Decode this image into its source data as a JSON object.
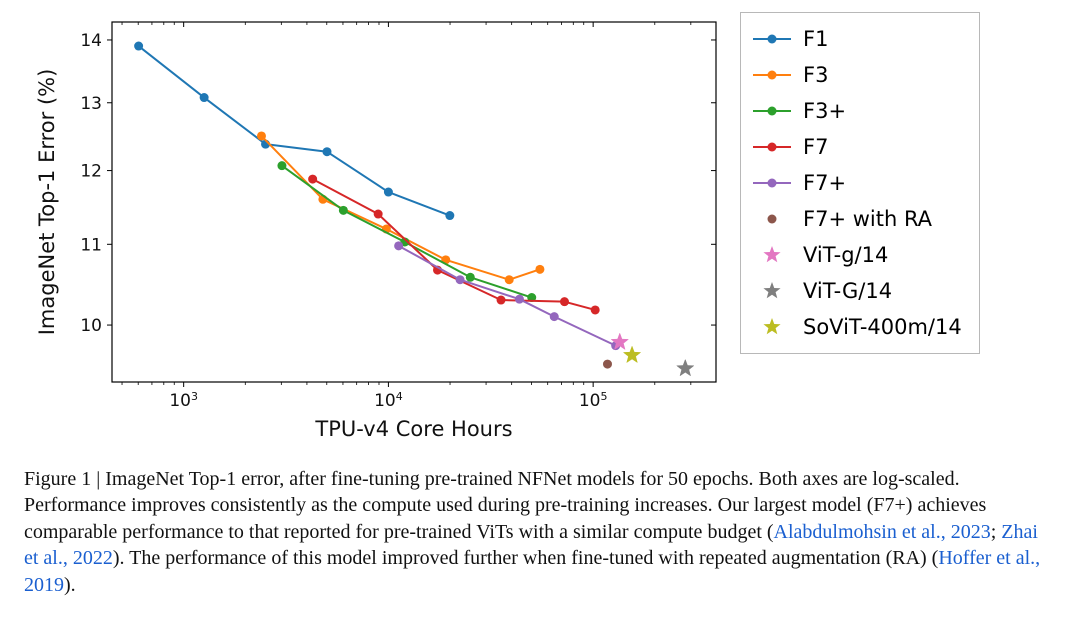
{
  "chart": {
    "type": "line+scatter",
    "x_axis": {
      "label": "TPU-v4 Core Hours",
      "scale": "log",
      "min_exp": 2.65,
      "max_exp": 5.6,
      "tick_exps": [
        3,
        4,
        5
      ],
      "tick_labels": [
        "10³",
        "10⁴",
        "10⁵"
      ],
      "minor_tick_exps": [
        2.699,
        2.778,
        2.845,
        2.903,
        2.954,
        3.301,
        3.477,
        3.602,
        3.699,
        3.778,
        3.845,
        3.903,
        3.954,
        4.301,
        4.477,
        4.602,
        4.699,
        4.778,
        4.845,
        4.903,
        4.954,
        5.301,
        5.477
      ]
    },
    "y_axis": {
      "label": "ImageNet Top-1 Error (%)",
      "scale": "log",
      "ticks": [
        10,
        11,
        12,
        13,
        14
      ],
      "min": 9.35,
      "max": 14.3
    },
    "line_width": 2.0,
    "marker_size": 4.5,
    "star_size": 9,
    "series": [
      {
        "name": "F1",
        "color": "#1f77b4",
        "type": "line",
        "marker": "circle",
        "points": [
          {
            "x_exp": 2.78,
            "y": 13.9
          },
          {
            "x_exp": 3.1,
            "y": 13.08
          },
          {
            "x_exp": 3.4,
            "y": 12.38
          },
          {
            "x_exp": 3.7,
            "y": 12.27
          },
          {
            "x_exp": 4.0,
            "y": 11.7
          },
          {
            "x_exp": 4.3,
            "y": 11.38
          }
        ]
      },
      {
        "name": "F3",
        "color": "#ff7f0e",
        "type": "line",
        "marker": "circle",
        "points": [
          {
            "x_exp": 3.38,
            "y": 12.5
          },
          {
            "x_exp": 3.68,
            "y": 11.6
          },
          {
            "x_exp": 3.99,
            "y": 11.2
          },
          {
            "x_exp": 4.28,
            "y": 10.8
          },
          {
            "x_exp": 4.59,
            "y": 10.55
          },
          {
            "x_exp": 4.74,
            "y": 10.68
          }
        ]
      },
      {
        "name": "F3+",
        "color": "#2ca02c",
        "type": "line",
        "marker": "circle",
        "points": [
          {
            "x_exp": 3.48,
            "y": 12.07
          },
          {
            "x_exp": 3.78,
            "y": 11.45
          },
          {
            "x_exp": 4.08,
            "y": 11.03
          },
          {
            "x_exp": 4.4,
            "y": 10.58
          },
          {
            "x_exp": 4.7,
            "y": 10.33
          }
        ]
      },
      {
        "name": "F7",
        "color": "#d62728",
        "type": "line",
        "marker": "circle",
        "points": [
          {
            "x_exp": 3.63,
            "y": 11.88
          },
          {
            "x_exp": 3.95,
            "y": 11.4
          },
          {
            "x_exp": 4.24,
            "y": 10.67
          },
          {
            "x_exp": 4.55,
            "y": 10.3
          },
          {
            "x_exp": 4.86,
            "y": 10.28
          },
          {
            "x_exp": 5.01,
            "y": 10.18
          }
        ]
      },
      {
        "name": "F7+",
        "color": "#9467bd",
        "type": "line",
        "marker": "circle",
        "points": [
          {
            "x_exp": 4.05,
            "y": 10.98
          },
          {
            "x_exp": 4.35,
            "y": 10.55
          },
          {
            "x_exp": 4.64,
            "y": 10.31
          },
          {
            "x_exp": 4.81,
            "y": 10.1
          },
          {
            "x_exp": 5.11,
            "y": 9.76
          }
        ]
      },
      {
        "name": "F7+ with RA",
        "color": "#8c564b",
        "type": "point",
        "marker": "circle",
        "points": [
          {
            "x_exp": 5.07,
            "y": 9.55
          }
        ]
      },
      {
        "name": "ViT-g/14",
        "color": "#e377c2",
        "type": "point",
        "marker": "star",
        "points": [
          {
            "x_exp": 5.13,
            "y": 9.8
          }
        ]
      },
      {
        "name": "ViT-G/14",
        "color": "#7f7f7f",
        "type": "point",
        "marker": "star",
        "points": [
          {
            "x_exp": 5.45,
            "y": 9.5
          }
        ]
      },
      {
        "name": "SoViT-400m/14",
        "color": "#bcbd22",
        "type": "point",
        "marker": "star",
        "points": [
          {
            "x_exp": 5.19,
            "y": 9.65
          }
        ]
      }
    ],
    "legend_order": [
      "F1",
      "F3",
      "F3+",
      "F7",
      "F7+",
      "F7+ with RA",
      "ViT-g/14",
      "ViT-G/14",
      "SoViT-400m/14"
    ],
    "plot_bg": "#ffffff",
    "axis_color": "#000000",
    "tick_len": 5,
    "minor_tick_len": 3
  },
  "caption": {
    "prefix": "Figure 1 | ",
    "body1": "ImageNet Top-1 error, after fine-tuning pre-trained NFNet models for 50 epochs. Both axes are log-scaled. Performance improves consistently as the compute used during pre-training increases. Our largest model (F7+) achieves comparable performance to that reported for pre-trained ViTs with a similar compute budget (",
    "link1": "Alabdulmohsin et al., 2023",
    "sep1": "; ",
    "link2": "Zhai et al., 2022",
    "body2": "). The performance of this model improved further when fine-tuned with repeated augmentation (RA) (",
    "link3": "Hoffer et al., 2019",
    "body3": ")."
  }
}
